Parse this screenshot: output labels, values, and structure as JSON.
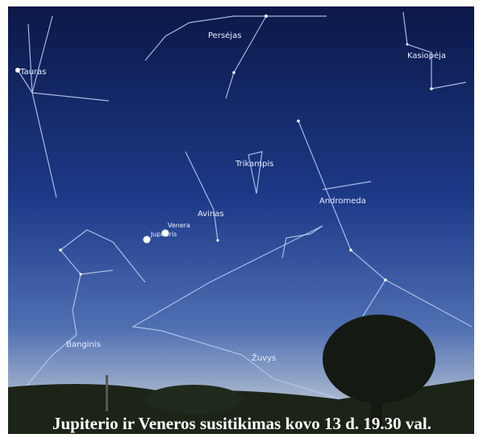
{
  "labels": [
    {
      "text": "Tauras"
    },
    {
      "text": "Persėjas"
    },
    {
      "text": "Kasiopėja"
    },
    {
      "text": "Trikampis"
    },
    {
      "text": "Andromeda"
    },
    {
      "text": "Avinas"
    },
    {
      "text": "Venera"
    },
    {
      "text": "Jupiteris"
    },
    {
      "text": "Banginis"
    },
    {
      "text": "Žuvys"
    }
  ],
  "caption": "Jupiterio ir Veneros susitikimas kovo 13 d. 19.30 val."
}
